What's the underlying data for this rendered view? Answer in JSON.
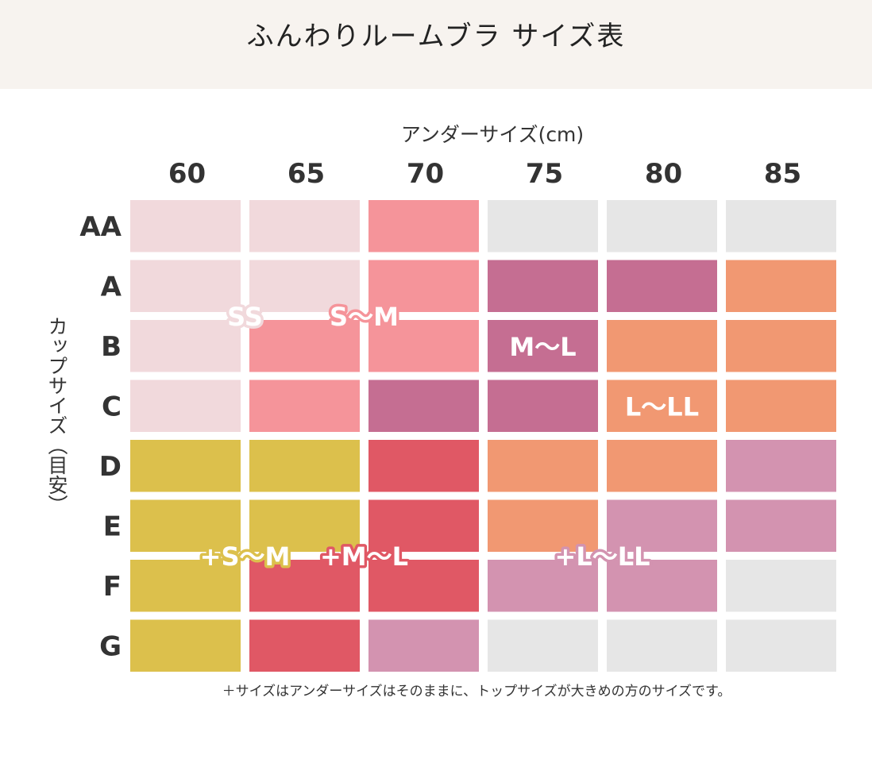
{
  "title": "ふんわりルームブラ サイズ表",
  "footnote": "＋サイズはアンダーサイズはそのままに、トップサイズが大きめの方のサイズです。",
  "chart_data": {
    "type": "heatmap",
    "xlabel": "アンダーサイズ(cm)",
    "ylabel": "カップサイズ（目安）",
    "columns": [
      "60",
      "65",
      "70",
      "75",
      "80",
      "85"
    ],
    "rows": [
      "AA",
      "A",
      "B",
      "C",
      "D",
      "E",
      "F",
      "G"
    ],
    "cells": [
      [
        "SS",
        "SS",
        "S〜M",
        "none",
        "none",
        "none"
      ],
      [
        "SS",
        "SS",
        "S〜M",
        "M〜L",
        "M〜L",
        "L〜LL"
      ],
      [
        "SS",
        "S〜M",
        "S〜M",
        "M〜L",
        "L〜LL",
        "L〜LL"
      ],
      [
        "SS",
        "S〜M",
        "M〜L",
        "M〜L",
        "L〜LL",
        "L〜LL"
      ],
      [
        "+S〜M",
        "+S〜M",
        "+M〜L",
        "L〜LL",
        "L〜LL",
        "+L〜LL"
      ],
      [
        "+S〜M",
        "+S〜M",
        "+M〜L",
        "L〜LL",
        "+L〜LL",
        "+L〜LL"
      ],
      [
        "+S〜M",
        "+M〜L",
        "+M〜L",
        "+L〜LL",
        "+L〜LL",
        "none"
      ],
      [
        "+S〜M",
        "+M〜L",
        "+L〜LL",
        "none",
        "none",
        "none"
      ]
    ],
    "size_colors": {
      "SS": "#f1d9dc",
      "S〜M": "#f5949a",
      "M〜L": "#c56e92",
      "L〜LL": "#f19872",
      "+S〜M": "#dcc04c",
      "+M〜L": "#e05865",
      "+L〜LL": "#d393b0",
      "none": "#e6e6e6"
    },
    "size_labels": [
      {
        "text": "SS",
        "group": "SS"
      },
      {
        "text": "S〜M",
        "group": "S〜M"
      },
      {
        "text": "M〜L",
        "group": "M〜L"
      },
      {
        "text": "L〜LL",
        "group": "L〜LL"
      },
      {
        "text": "+S〜M",
        "group": "+S〜M"
      },
      {
        "text": "+M〜L",
        "group": "+M〜L"
      },
      {
        "text": "+L〜LL",
        "group": "+L〜LL"
      }
    ]
  }
}
